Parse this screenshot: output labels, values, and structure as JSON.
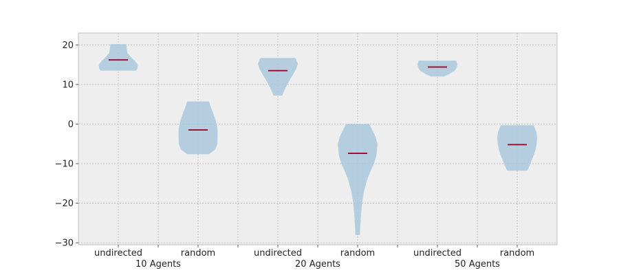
{
  "chart_data": {
    "type": "violin",
    "title": "",
    "xlabel": "",
    "ylabel": "",
    "ylim": [
      -30.5,
      23
    ],
    "yticks": [
      20,
      10,
      0,
      -10,
      -20,
      -30
    ],
    "grid": true,
    "colors": {
      "background": "#eeeeee",
      "grid": "#b0b0b0",
      "violin_fill": "#a9c8dc",
      "median": "#a50f2d",
      "frame": "#bcbcbc"
    },
    "categories": [
      "undirected",
      "random",
      "undirected",
      "random",
      "undirected",
      "random"
    ],
    "groups": [
      "10 Agents",
      "20 Agents",
      "50 Agents"
    ],
    "violins": [
      {
        "label": "undirected",
        "group": "10 Agents",
        "median": 16.2,
        "min": 13.5,
        "max": 20.2,
        "profile": [
          [
            13.5,
            0.88
          ],
          [
            14.0,
            0.96
          ],
          [
            15.0,
            0.98
          ],
          [
            16.0,
            0.82
          ],
          [
            17.0,
            0.62
          ],
          [
            18.0,
            0.46
          ],
          [
            19.0,
            0.42
          ],
          [
            20.2,
            0.4
          ]
        ]
      },
      {
        "label": "random",
        "group": "10 Agents",
        "median": -1.5,
        "min": -7.6,
        "max": 5.7,
        "profile": [
          [
            -7.6,
            0.55
          ],
          [
            -6.5,
            0.85
          ],
          [
            -5,
            0.97
          ],
          [
            -3,
            0.98
          ],
          [
            -1,
            0.97
          ],
          [
            1,
            0.88
          ],
          [
            3,
            0.74
          ],
          [
            4.5,
            0.62
          ],
          [
            5.7,
            0.55
          ]
        ]
      },
      {
        "label": "undirected",
        "group": "20 Agents",
        "median": 13.5,
        "min": 7.2,
        "max": 16.7,
        "profile": [
          [
            7.2,
            0.22
          ],
          [
            8.0,
            0.28
          ],
          [
            9.5,
            0.42
          ],
          [
            11.0,
            0.58
          ],
          [
            12.5,
            0.76
          ],
          [
            14.0,
            0.92
          ],
          [
            15.3,
            1.0
          ],
          [
            16.7,
            0.88
          ]
        ]
      },
      {
        "label": "random",
        "group": "20 Agents",
        "median": -7.4,
        "min": -28,
        "max": 0,
        "profile": [
          [
            -28,
            0.12
          ],
          [
            -26,
            0.13
          ],
          [
            -23,
            0.17
          ],
          [
            -20,
            0.22
          ],
          [
            -17,
            0.32
          ],
          [
            -14,
            0.48
          ],
          [
            -12,
            0.64
          ],
          [
            -10,
            0.82
          ],
          [
            -8,
            0.94
          ],
          [
            -5,
            1.0
          ],
          [
            -3,
            0.88
          ],
          [
            -1,
            0.68
          ],
          [
            0,
            0.58
          ]
        ]
      },
      {
        "label": "undirected",
        "group": "50 Agents",
        "median": 14.4,
        "min": 12.0,
        "max": 16.0,
        "profile": [
          [
            12.0,
            0.32
          ],
          [
            12.6,
            0.58
          ],
          [
            13.3,
            0.82
          ],
          [
            14.0,
            0.95
          ],
          [
            15.0,
            1.0
          ],
          [
            16.0,
            0.95
          ]
        ]
      },
      {
        "label": "random",
        "group": "50 Agents",
        "median": -5.2,
        "min": -11.8,
        "max": -0.3,
        "profile": [
          [
            -11.8,
            0.5
          ],
          [
            -11,
            0.58
          ],
          [
            -9.5,
            0.7
          ],
          [
            -8,
            0.82
          ],
          [
            -6.5,
            0.92
          ],
          [
            -5,
            0.98
          ],
          [
            -3.5,
            1.0
          ],
          [
            -2,
            0.96
          ],
          [
            -0.3,
            0.82
          ]
        ]
      }
    ]
  }
}
